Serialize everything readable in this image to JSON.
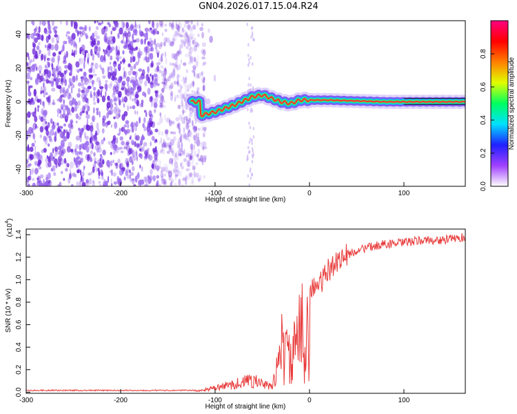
{
  "title": "GN04.2026.017.15.04.R24",
  "colors": {
    "signal_line": "#e83a3a",
    "band_center": "#c8001a",
    "noise": "#6a22d8",
    "frame": "#000000"
  },
  "chart_data": [
    {
      "type": "heatmap",
      "xlabel": "Height of straight line (km)",
      "ylabel": "Frequency (Hz)",
      "xlim": [
        -300,
        165
      ],
      "ylim": [
        -50,
        48
      ],
      "xticks": [
        -300,
        -200,
        -100,
        0,
        100
      ],
      "xtick_labels": [
        "-300",
        "-200",
        "-100",
        "0",
        "100"
      ],
      "yticks": [
        -40,
        -20,
        0,
        20,
        40
      ],
      "ytick_labels": [
        "-40",
        "-20",
        "0",
        "20",
        "40"
      ],
      "colorbar": {
        "label": "Normalized spectral amplitude",
        "range": [
          0,
          1
        ],
        "ticks": [
          0,
          0.2,
          0.4,
          0.6,
          0.8
        ],
        "tick_labels": [
          "0.0",
          "0.2",
          "0.4",
          "0.6",
          "0.8"
        ],
        "colormap": [
          "#ffffff",
          "#a040ff",
          "#2020ff",
          "#00e0ff",
          "#00ff60",
          "#e0ff00",
          "#ff8000",
          "#ff0000",
          "#ff0080"
        ]
      },
      "ridge": {
        "x": [
          -115,
          -100,
          -80,
          -60,
          -50,
          -40,
          -30,
          -20,
          -10,
          0,
          20,
          50,
          80,
          165
        ],
        "y": [
          -8,
          -6,
          -2,
          3,
          4,
          2,
          0,
          -1,
          1,
          1,
          1,
          0.5,
          0,
          0
        ]
      }
    },
    {
      "type": "line",
      "xlabel": "Height of straight line (km)",
      "ylabel": "SNR (10 * v/v)",
      "y_multiplier_label": "(x10",
      "y_multiplier_exp": "4",
      "xlim": [
        -300,
        165
      ],
      "ylim": [
        -0.01,
        1.45
      ],
      "xticks": [
        -300,
        -200,
        -100,
        0,
        100
      ],
      "xtick_labels": [
        "-300",
        "-200",
        "-100",
        "0",
        "100"
      ],
      "yticks": [
        0,
        0.2,
        0.4,
        0.6,
        0.8,
        1.0,
        1.2,
        1.4
      ],
      "ytick_labels": [
        "0.0",
        "0.2",
        "0.4",
        "0.6",
        "0.8",
        "1.0",
        "1.2",
        "1.4"
      ],
      "series": [
        {
          "x": [
            -300,
            -200,
            -120,
            -100,
            -80,
            -60,
            -50,
            -40,
            -35,
            -30,
            -25,
            -20,
            -15,
            -10,
            -5,
            0,
            10,
            20,
            30,
            40,
            50,
            60,
            70,
            80,
            90,
            100,
            120,
            140,
            165
          ],
          "y": [
            0.01,
            0.01,
            0.01,
            0.04,
            0.08,
            0.12,
            0.08,
            0.05,
            0.3,
            0.55,
            0.45,
            0.4,
            0.5,
            0.72,
            0.75,
            0.9,
            0.95,
            1.08,
            1.18,
            1.22,
            1.26,
            1.28,
            1.3,
            1.32,
            1.32,
            1.33,
            1.35,
            1.35,
            1.38
          ]
        }
      ]
    }
  ]
}
